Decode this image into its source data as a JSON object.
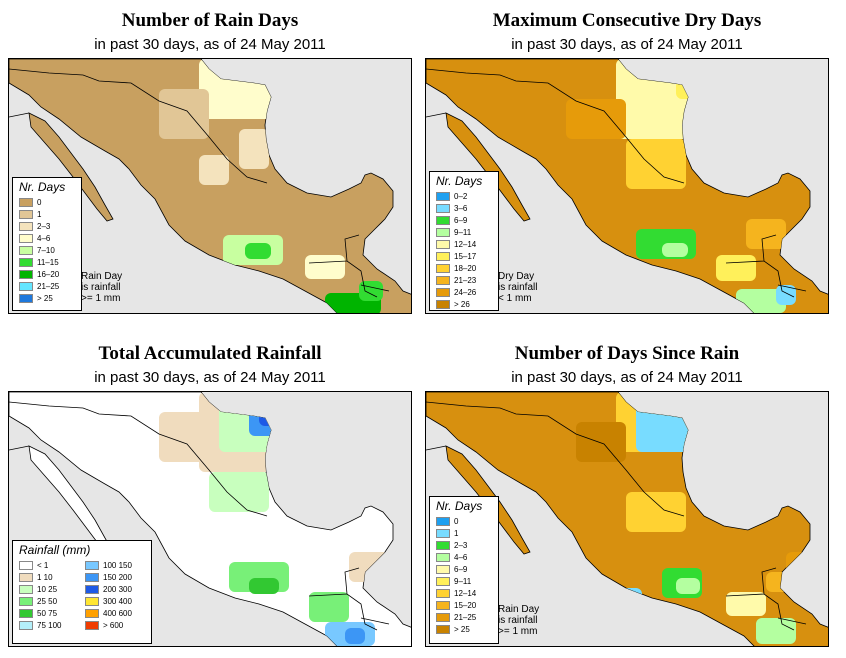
{
  "panels": [
    {
      "title": "Number of Rain Days",
      "subtitle": "in past 30 days, as of  24 May 2011",
      "base_color": "#c8a060",
      "legend_title": "Nr. Days",
      "legend": [
        {
          "label": "0",
          "color": "#c8a060"
        },
        {
          "label": "1",
          "color": "#e1c696"
        },
        {
          "label": "2–3",
          "color": "#f4e3bd"
        },
        {
          "label": "4–6",
          "color": "#fffdcc"
        },
        {
          "label": "7–10",
          "color": "#c8ffa0"
        },
        {
          "label": "11–15",
          "color": "#32dc32"
        },
        {
          "label": "16–20",
          "color": "#00b400"
        },
        {
          "label": "21–25",
          "color": "#64e6ff"
        },
        {
          "label": "> 25",
          "color": "#1e78dc"
        }
      ],
      "note": [
        "Rain Day",
        "is rainfall",
        ">= 1 mm"
      ]
    },
    {
      "title": "Maximum Consecutive Dry Days",
      "subtitle": "in past 30 days, as of  24 May 2011",
      "base_color": "#d7900f",
      "legend_title": "Nr. Days",
      "legend": [
        {
          "label": "0–2",
          "color": "#1ea0f0"
        },
        {
          "label": "3–6",
          "color": "#78dcff"
        },
        {
          "label": "6–9",
          "color": "#32dc32"
        },
        {
          "label": "9–11",
          "color": "#b4ffa0"
        },
        {
          "label": "12–14",
          "color": "#fffaaa"
        },
        {
          "label": "15–17",
          "color": "#fff05a"
        },
        {
          "label": "18–20",
          "color": "#ffd232"
        },
        {
          "label": "21–23",
          "color": "#f5b41e"
        },
        {
          "label": "24–26",
          "color": "#e69b0a"
        },
        {
          "label": "> 26",
          "color": "#c88200"
        }
      ],
      "note": [
        "Dry Day",
        "is rainfall",
        "< 1 mm"
      ]
    },
    {
      "title": "Total Accumulated Rainfall",
      "subtitle": "in past 30 days, as of  24 May 2011",
      "base_color": "#ffffff",
      "legend_title": "Rainfall (mm)",
      "legend": [
        {
          "label": "< 1",
          "color": "#ffffff"
        },
        {
          "label": "1    10",
          "color": "#f0dcbe"
        },
        {
          "label": "10    25",
          "color": "#c8ffbe"
        },
        {
          "label": "25    50",
          "color": "#78f078"
        },
        {
          "label": "50    75",
          "color": "#32c832"
        },
        {
          "label": "75    100",
          "color": "#b4f0fa"
        },
        {
          "label": "100    150",
          "color": "#78c8ff"
        },
        {
          "label": "150    200",
          "color": "#3c96f5"
        },
        {
          "label": "200    300",
          "color": "#1e5ae6"
        },
        {
          "label": "300    400",
          "color": "#ffe632"
        },
        {
          "label": "400    600",
          "color": "#ffa000"
        },
        {
          "label": "> 600",
          "color": "#f03c00"
        }
      ],
      "note": []
    },
    {
      "title": "Number of Days Since Rain",
      "subtitle": "in past 30 days, as of  24 May 2011",
      "base_color": "#d7900f",
      "legend_title": "Nr. Days",
      "legend": [
        {
          "label": "0",
          "color": "#1ea0f0"
        },
        {
          "label": "1",
          "color": "#78dcff"
        },
        {
          "label": "2–3",
          "color": "#32dc32"
        },
        {
          "label": "4–6",
          "color": "#b4ffa0"
        },
        {
          "label": "6–9",
          "color": "#fffaaa"
        },
        {
          "label": "9–11",
          "color": "#fff05a"
        },
        {
          "label": "12–14",
          "color": "#ffd232"
        },
        {
          "label": "15–20",
          "color": "#f5b41e"
        },
        {
          "label": "21–25",
          "color": "#e69b0a"
        },
        {
          "label": "> 25",
          "color": "#c88200"
        }
      ],
      "note": [
        "Rain Day",
        "is rainfall",
        ">= 1 mm"
      ]
    }
  ]
}
